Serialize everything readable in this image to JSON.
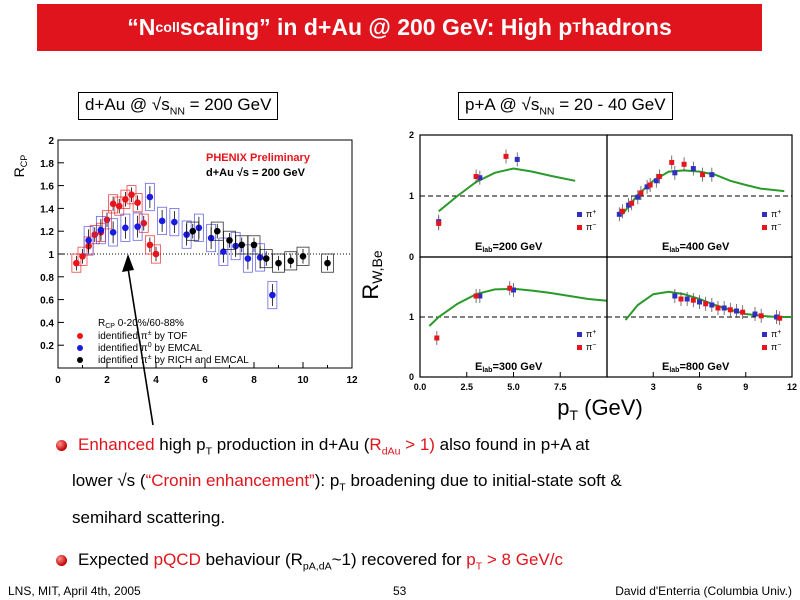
{
  "title": {
    "pre": "“N",
    "sub1": "coll",
    "mid": " scaling” in d+Au @ 200 GeV: High p",
    "sub2": "T",
    "post": " hadrons"
  },
  "left_label": {
    "pre": "d+Au @ √s",
    "sub": "NN",
    "post": " = 200 GeV"
  },
  "right_label": {
    "pre": "p+A @ √s",
    "sub": "NN",
    "post": " = 20 - 40 GeV"
  },
  "left_plot": {
    "ylabel": "R",
    "ylabel_sub": "CP",
    "preliminary": "PHENIX Preliminary",
    "system": "d+Au √s = 200 GeV",
    "legend_title": "R",
    "legend_title_sub": "CP",
    "legend_title_post": " 0-20%/60-88%",
    "legend": [
      {
        "text": "identified π",
        "sup": "±",
        "post": " by TOF",
        "color": "#e8141c"
      },
      {
        "text": "identified π",
        "sup": "0",
        "post": " by EMCAL",
        "color": "#1a1ae0"
      },
      {
        "text": "identified π",
        "sup": "±",
        "post": " by RICH and EMCAL",
        "color": "#000000"
      }
    ]
  },
  "right_plot": {
    "ylabel": "R",
    "ylabel_sub": "W,Be",
    "xlabel": "p",
    "xlabel_sub": "T",
    "xlabel_post": " (GeV)",
    "panels": [
      {
        "elab": "E",
        "elab_sub": "lab",
        "elab_post": "=200  GeV"
      },
      {
        "elab": "E",
        "elab_sub": "lab",
        "elab_post": "=400  GeV"
      },
      {
        "elab": "E",
        "elab_sub": "lab",
        "elab_post": "=300  GeV"
      },
      {
        "elab": "E",
        "elab_sub": "lab",
        "elab_post": "=800  GeV"
      }
    ],
    "legend": [
      {
        "text": "π",
        "sup": "+",
        "color": "#3030c0"
      },
      {
        "text": "π",
        "sup": "−",
        "color": "#e8141c"
      }
    ]
  },
  "chart_data": [
    {
      "type": "scatter",
      "title": "PHENIX Preliminary",
      "subtitle": "d+Au √s = 200 GeV",
      "xlabel": "",
      "ylabel": "RCP",
      "xlim": [
        0,
        12
      ],
      "ylim": [
        0,
        2
      ],
      "xticks": [
        "0",
        "2",
        "4",
        "6",
        "8",
        "10",
        "12"
      ],
      "yticks": [
        "0.2",
        "0.4",
        "0.6",
        "0.8",
        "1",
        "1.2",
        "1.4",
        "1.6",
        "1.8",
        "2"
      ],
      "reference_line": 1,
      "series": [
        {
          "name": "identified π± by TOF",
          "color": "#e8141c",
          "x": [
            0.75,
            1.0,
            1.25,
            1.5,
            1.75,
            2.0,
            2.25,
            2.5,
            2.75,
            3.0,
            3.25,
            3.5,
            3.75,
            4.0
          ],
          "y": [
            0.92,
            0.98,
            1.07,
            1.17,
            1.19,
            1.3,
            1.44,
            1.42,
            1.48,
            1.52,
            1.45,
            1.27,
            1.08,
            1.0
          ]
        },
        {
          "name": "identified π0 by EMCAL",
          "color": "#1a1ae0",
          "x": [
            1.25,
            1.75,
            2.25,
            2.75,
            3.25,
            3.75,
            4.25,
            4.75,
            5.25,
            5.75,
            6.25,
            6.75,
            7.25,
            7.75,
            8.25,
            8.75
          ],
          "y": [
            1.12,
            1.21,
            1.19,
            1.23,
            1.24,
            1.5,
            1.29,
            1.28,
            1.17,
            1.23,
            1.14,
            1.02,
            1.07,
            0.96,
            0.97,
            0.64
          ]
        },
        {
          "name": "identified π± by RICH and EMCAL",
          "color": "#000000",
          "x": [
            5.5,
            6.5,
            7.0,
            7.5,
            8.0,
            8.5,
            9.0,
            9.5,
            10.0,
            11.0
          ],
          "y": [
            1.2,
            1.2,
            1.12,
            1.08,
            1.08,
            0.96,
            0.92,
            0.94,
            0.98,
            0.92
          ]
        }
      ]
    },
    {
      "type": "scatter",
      "title": "",
      "xlabel": "pT (GeV)",
      "ylabel": "RW,Be",
      "panels": [
        {
          "label": "Elab=200 GeV",
          "xlim": [
            0,
            10
          ],
          "ylim": [
            0,
            2
          ],
          "xticks": [
            "0.0",
            "2.5",
            "5.0",
            "7.5"
          ],
          "yticks": [
            "0",
            "1",
            "2"
          ],
          "reference_line": 1,
          "curve": {
            "x": [
              1,
              2,
              3,
              4,
              5,
              6,
              7,
              8.3
            ],
            "y": [
              0.75,
              1.0,
              1.23,
              1.38,
              1.45,
              1.4,
              1.33,
              1.25
            ]
          },
          "points_pi_plus": {
            "x": [
              1.0,
              3.2,
              5.2
            ],
            "y": [
              0.58,
              1.3,
              1.6
            ]
          },
          "points_pi_minus": {
            "x": [
              1.0,
              3.0,
              4.6
            ],
            "y": [
              0.55,
              1.32,
              1.65
            ]
          }
        },
        {
          "label": "Elab=400 GeV",
          "xlim": [
            0,
            12
          ],
          "ylim": [
            0,
            2
          ],
          "xticks": [
            "3",
            "6",
            "9"
          ],
          "yticks": [
            "1",
            "2"
          ],
          "reference_line": 1,
          "curve": {
            "x": [
              1,
              2,
              3,
              4,
              5,
              6,
              7,
              8,
              9,
              10,
              11.5
            ],
            "y": [
              0.7,
              1.02,
              1.25,
              1.4,
              1.42,
              1.4,
              1.35,
              1.25,
              1.18,
              1.12,
              1.08
            ]
          },
          "points_pi_plus": {
            "x": [
              0.8,
              1.4,
              2.0,
              2.6,
              3.2,
              4.4,
              5.6,
              6.8
            ],
            "y": [
              0.7,
              0.85,
              0.98,
              1.15,
              1.25,
              1.38,
              1.45,
              1.35
            ]
          },
          "points_pi_minus": {
            "x": [
              1.0,
              1.6,
              2.2,
              2.8,
              3.4,
              4.2,
              5.0,
              6.2
            ],
            "y": [
              0.75,
              0.88,
              1.05,
              1.18,
              1.32,
              1.55,
              1.52,
              1.35
            ]
          }
        },
        {
          "label": "Elab=300 GeV",
          "xlim": [
            0,
            10
          ],
          "ylim": [
            0,
            2
          ],
          "xticks": [
            "0.0",
            "2.5",
            "5.0",
            "7.5"
          ],
          "yticks": [
            "0",
            "1"
          ],
          "reference_line": 1,
          "curve": {
            "x": [
              0.5,
              1,
              2,
              3,
              4,
              5,
              6,
              7,
              8,
              9,
              10
            ],
            "y": [
              0.85,
              1.0,
              1.22,
              1.38,
              1.46,
              1.47,
              1.44,
              1.4,
              1.35,
              1.3,
              1.27
            ]
          },
          "points_pi_plus": {
            "x": [
              3.2,
              5.0
            ],
            "y": [
              1.35,
              1.45
            ]
          },
          "points_pi_minus": {
            "x": [
              0.9,
              3.0,
              4.8
            ],
            "y": [
              0.65,
              1.35,
              1.48
            ]
          }
        },
        {
          "label": "Elab=800 GeV",
          "xlim": [
            0,
            12
          ],
          "ylim": [
            0,
            2
          ],
          "xticks": [
            "3",
            "6",
            "9",
            "12"
          ],
          "yticks": [
            "1"
          ],
          "reference_line": 1,
          "curve": {
            "x": [
              1.2,
              2,
              3,
              4,
              5,
              6,
              7,
              8,
              9,
              10,
              11,
              12
            ],
            "y": [
              0.95,
              1.2,
              1.38,
              1.42,
              1.38,
              1.3,
              1.2,
              1.12,
              1.05,
              1.02,
              1.0,
              1.0
            ]
          },
          "points_pi_plus": {
            "x": [
              4.4,
              5.2,
              6.0,
              6.8,
              7.6,
              8.4,
              9.6,
              11.0
            ],
            "y": [
              1.35,
              1.3,
              1.25,
              1.2,
              1.15,
              1.1,
              1.05,
              1.0
            ]
          },
          "points_pi_minus": {
            "x": [
              4.8,
              5.6,
              6.4,
              7.2,
              8.0,
              8.8,
              10.0,
              11.2
            ],
            "y": [
              1.3,
              1.28,
              1.22,
              1.15,
              1.12,
              1.08,
              1.02,
              0.98
            ]
          }
        }
      ]
    }
  ],
  "bullets": [
    {
      "red1": "Enhanced",
      "t1": " high p",
      "sub1": "T",
      "t2": " production in d+Au (",
      "red2": "R",
      "redsub2": "dAu",
      "red2post": " > 1)",
      "t3": " also found in p+A at",
      "line2_pre": "lower √s (",
      "red3": "“Cronin enhancement”",
      "line2_post": "): p",
      "sub2": "T",
      "line2_end": " broadening due to initial-state soft &",
      "line3": "semihard scattering."
    },
    {
      "t1": "Expected ",
      "red1": "pQCD",
      "t2": " behaviour (R",
      "sub1": "pA,dA",
      "t3": "~1) recovered for ",
      "red2": "p",
      "redsub2": "T",
      "red2post": " > 8 GeV/c"
    }
  ],
  "footer": {
    "left": "LNS, MIT, April 4th, 2005",
    "page": "53",
    "right": "David d'Enterria (Columbia Univ.)"
  }
}
